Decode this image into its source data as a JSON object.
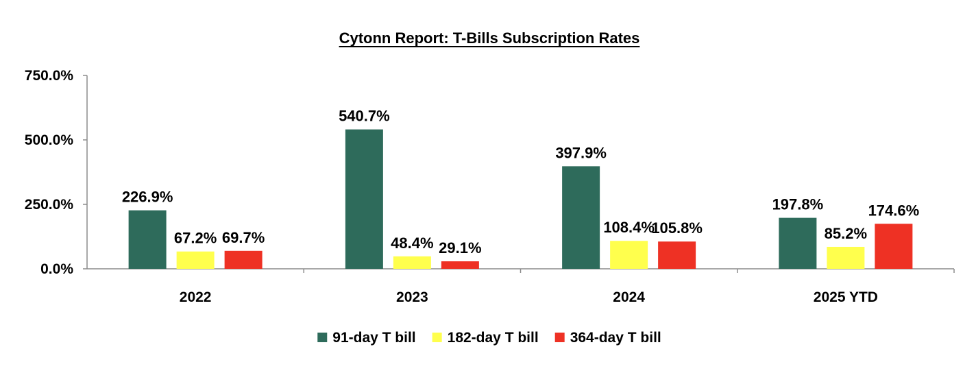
{
  "chart_data": {
    "type": "bar",
    "title": "Cytonn Report: T-Bills Subscription Rates",
    "xlabel": "",
    "ylabel": "",
    "categories": [
      "2022",
      "2023",
      "2024",
      "2025 YTD"
    ],
    "series": [
      {
        "name": "91-day T bill",
        "color": "#2e6b5b",
        "values": [
          226.9,
          540.7,
          397.9,
          197.8
        ],
        "labels": [
          "226.9%",
          "540.7%",
          "397.9%",
          "197.8%"
        ]
      },
      {
        "name": "182-day T bill",
        "color": "#ffff4d",
        "values": [
          67.2,
          48.4,
          108.4,
          85.2
        ],
        "labels": [
          "67.2%",
          "48.4%",
          "108.4%",
          "85.2%"
        ]
      },
      {
        "name": "364-day T bill",
        "color": "#ee3124",
        "values": [
          69.7,
          29.1,
          105.8,
          174.6
        ],
        "labels": [
          "69.7%",
          "29.1%",
          "105.8%",
          "174.6%"
        ]
      }
    ],
    "ylim": [
      0,
      750
    ],
    "yticks": [
      0,
      250,
      500,
      750
    ],
    "ytick_labels": [
      "0.0%",
      "250.0%",
      "500.0%",
      "750.0%"
    ],
    "grid": false,
    "legend_position": "bottom"
  }
}
